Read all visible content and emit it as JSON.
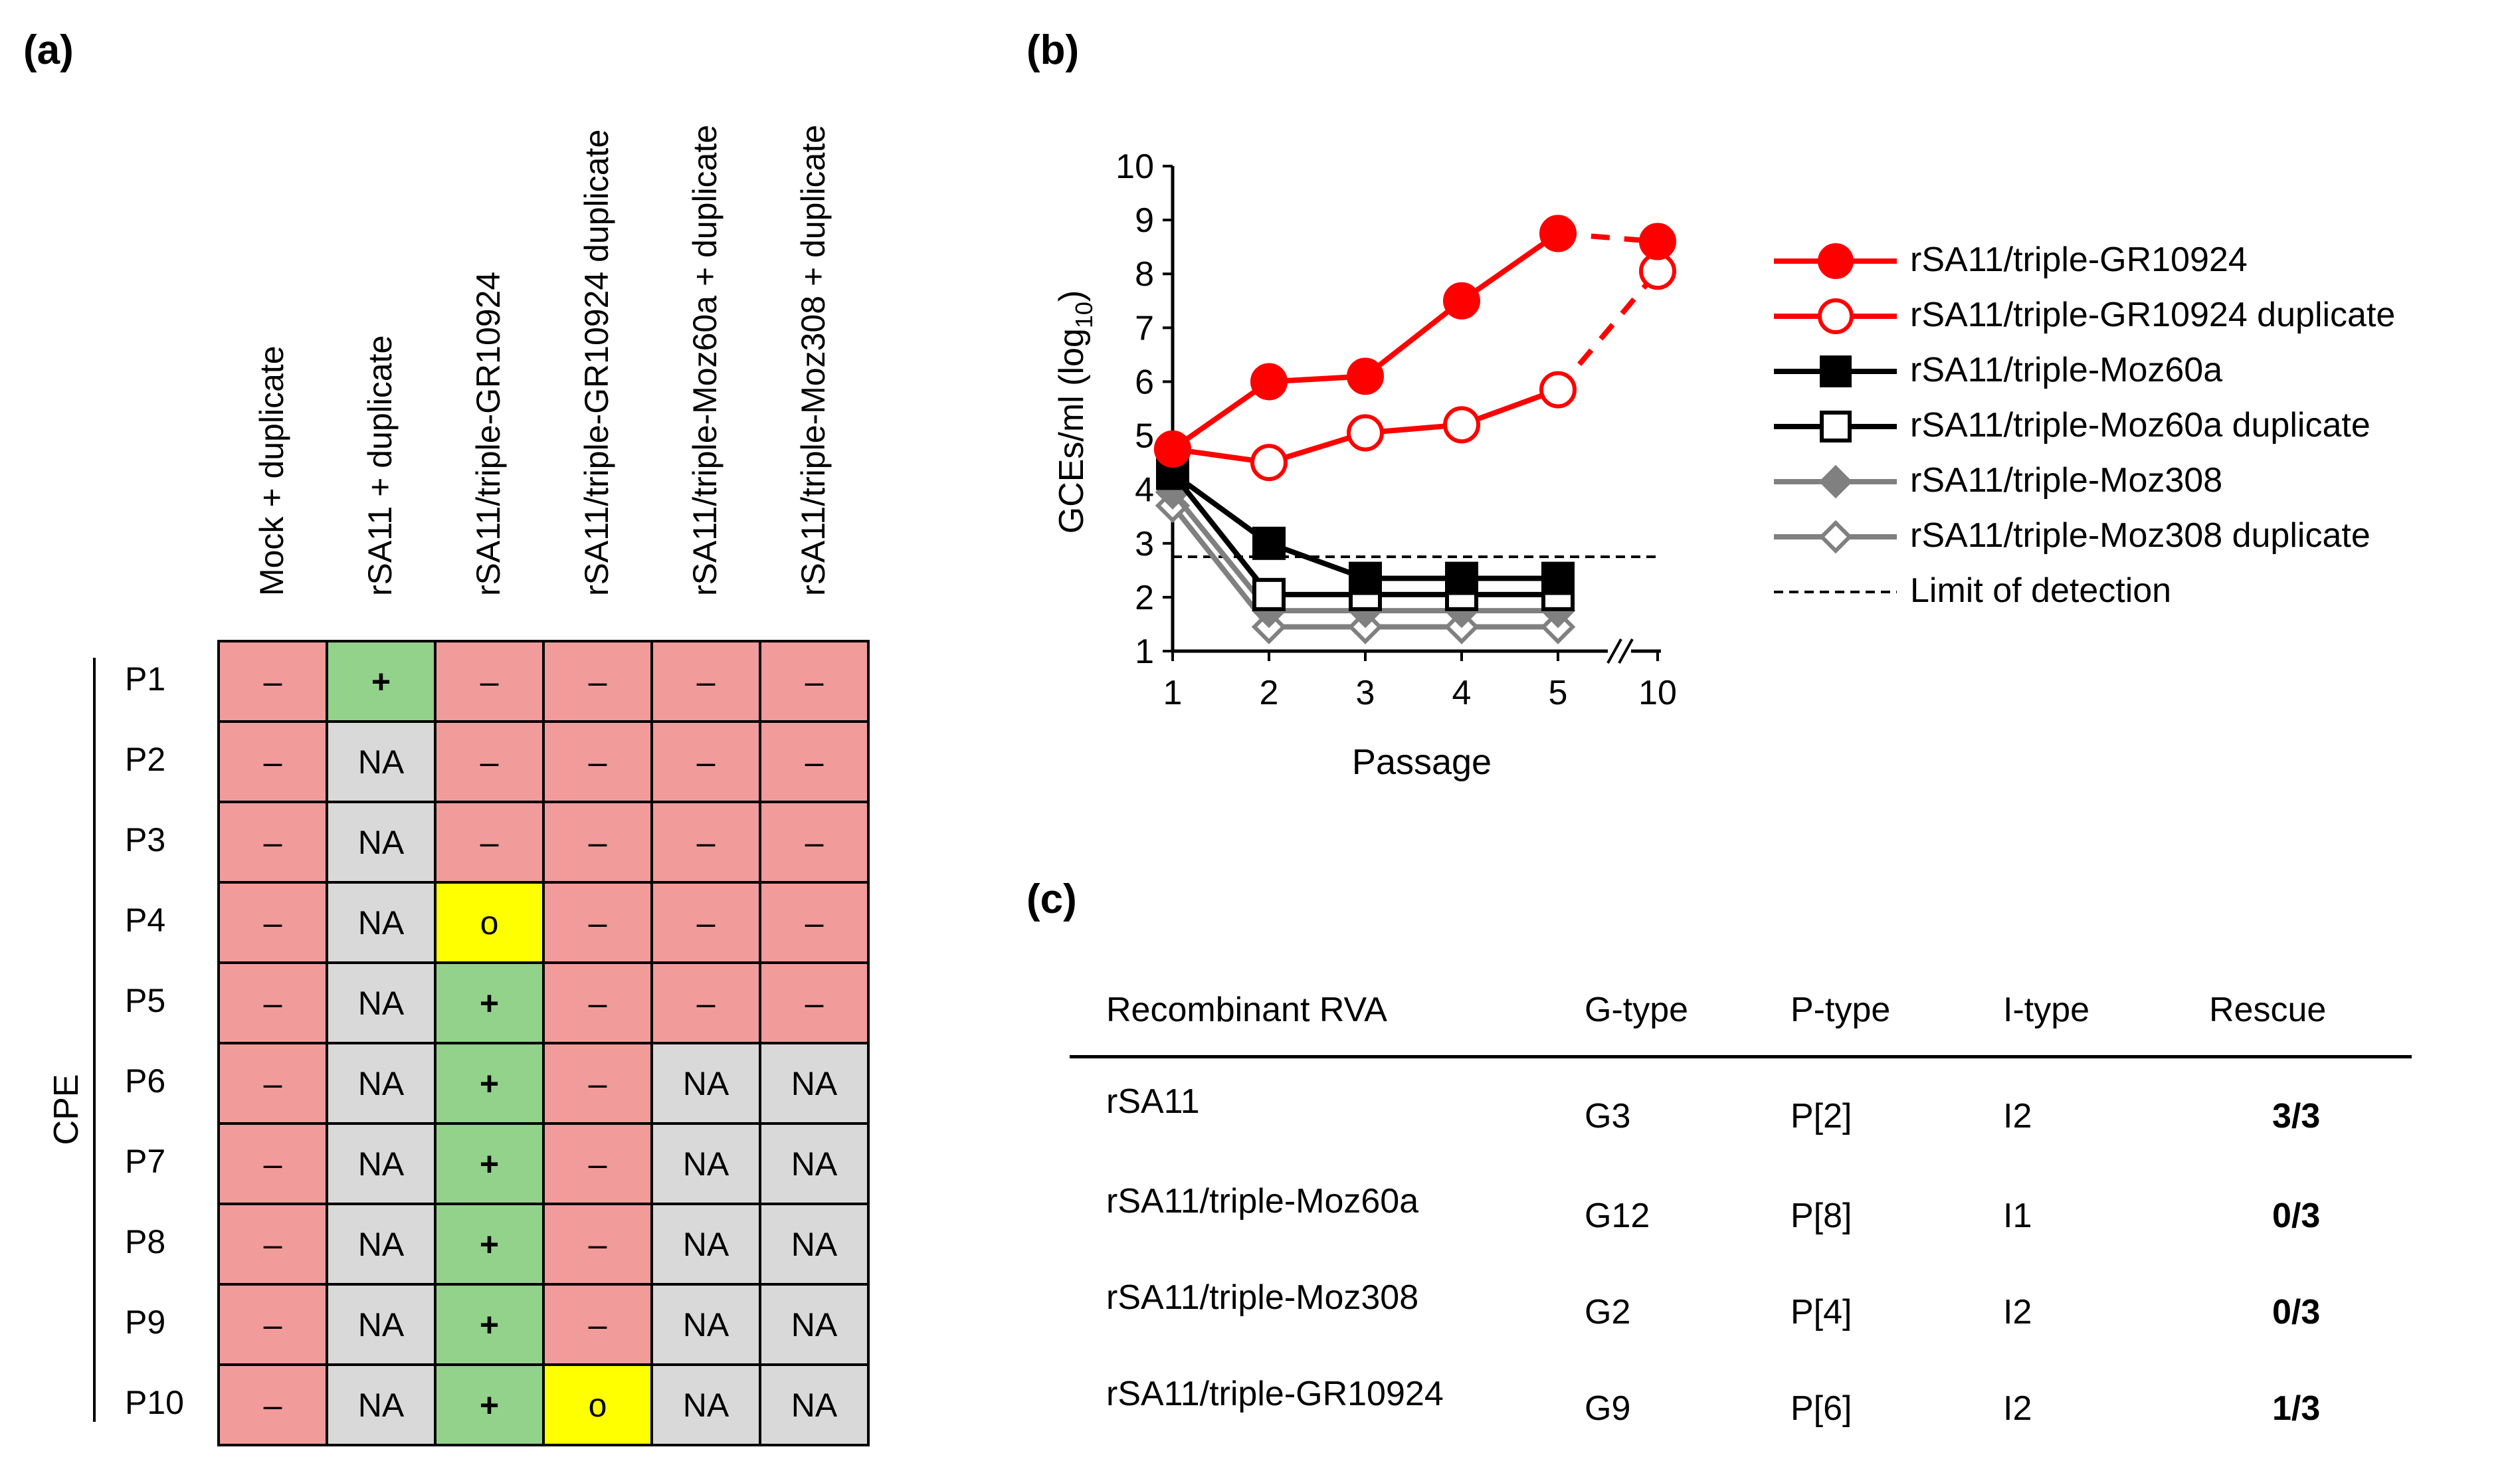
{
  "panels": {
    "a": {
      "label": "(a)"
    },
    "b": {
      "label": "(b)"
    },
    "c": {
      "label": "(c)"
    }
  },
  "grid": {
    "columns": [
      "Mock + duplicate",
      "rSA11 + duplicate",
      "rSA11/triple-GR10924",
      "rSA11/triple-GR10924 duplicate",
      "rSA11/triple-Moz60a + duplicate",
      "rSA11/triple-Moz308 + duplicate"
    ],
    "row_group": "CPE",
    "rows": [
      {
        "label": "P1",
        "cells": [
          "–",
          "+",
          "–",
          "–",
          "–",
          "–"
        ]
      },
      {
        "label": "P2",
        "cells": [
          "–",
          "NA",
          "–",
          "–",
          "–",
          "–"
        ]
      },
      {
        "label": "P3",
        "cells": [
          "–",
          "NA",
          "–",
          "–",
          "–",
          "–"
        ]
      },
      {
        "label": "P4",
        "cells": [
          "–",
          "NA",
          "o",
          "–",
          "–",
          "–"
        ]
      },
      {
        "label": "P5",
        "cells": [
          "–",
          "NA",
          "+",
          "–",
          "–",
          "–"
        ]
      },
      {
        "label": "P6",
        "cells": [
          "–",
          "NA",
          "+",
          "–",
          "NA",
          "NA"
        ]
      },
      {
        "label": "P7",
        "cells": [
          "–",
          "NA",
          "+",
          "–",
          "NA",
          "NA"
        ]
      },
      {
        "label": "P8",
        "cells": [
          "–",
          "NA",
          "+",
          "–",
          "NA",
          "NA"
        ]
      },
      {
        "label": "P9",
        "cells": [
          "–",
          "NA",
          "+",
          "–",
          "NA",
          "NA"
        ]
      },
      {
        "label": "P10",
        "cells": [
          "–",
          "NA",
          "+",
          "o",
          "NA",
          "NA"
        ]
      }
    ],
    "colors": {
      "negative": "#f29b9b",
      "positive": "#92d28a",
      "na": "#d9d9d9",
      "partial": "#ffff00"
    }
  },
  "chart_data": {
    "type": "line",
    "xlabel": "Passage",
    "ylabel_main": "GCEs/ml (log",
    "ylabel_sub": "10",
    "ylabel_end": ")",
    "ylim": [
      1,
      10
    ],
    "yticks": [
      1,
      2,
      3,
      4,
      5,
      6,
      7,
      8,
      9,
      10
    ],
    "xticks": [
      "1",
      "2",
      "3",
      "4",
      "5",
      "10"
    ],
    "axis_break": true,
    "limit_of_detection": 2.75,
    "series": [
      {
        "name": "rSA11/triple-GR10924",
        "color": "#ff0000",
        "marker": "circle",
        "filled": true,
        "values": [
          4.75,
          6.0,
          6.1,
          7.5,
          8.75,
          8.6
        ]
      },
      {
        "name": "rSA11/triple-GR10924 duplicate",
        "color": "#ff0000",
        "marker": "circle",
        "filled": false,
        "values": [
          4.75,
          4.5,
          5.05,
          5.2,
          5.85,
          8.05
        ]
      },
      {
        "name": "rSA11/triple-Moz60a",
        "color": "#000000",
        "marker": "square",
        "filled": true,
        "values": [
          4.3,
          3.0,
          2.35,
          2.35,
          2.35,
          null
        ]
      },
      {
        "name": "rSA11/triple-Moz60a duplicate",
        "color": "#000000",
        "marker": "square",
        "filled": false,
        "values": [
          4.3,
          2.05,
          2.05,
          2.05,
          2.05,
          null
        ]
      },
      {
        "name": "rSA11/triple-Moz308",
        "color": "#808080",
        "marker": "diamond",
        "filled": true,
        "values": [
          3.95,
          1.75,
          1.75,
          1.75,
          1.75,
          null
        ]
      },
      {
        "name": "rSA11/triple-Moz308 duplicate",
        "color": "#808080",
        "marker": "diamond",
        "filled": false,
        "values": [
          3.7,
          1.45,
          1.45,
          1.45,
          1.45,
          null
        ]
      }
    ],
    "lod_label": "Limit of detection"
  },
  "table_c": {
    "headers": [
      "Recombinant RVA",
      "G-type",
      "P-type",
      "I-type",
      "Rescue"
    ],
    "rows": [
      [
        "rSA11",
        "G3",
        "P[2]",
        "I2",
        "3/3"
      ],
      [
        "rSA11/triple-Moz60a",
        "G12",
        "P[8]",
        "I1",
        "0/3"
      ],
      [
        "rSA11/triple-Moz308",
        "G2",
        "P[4]",
        "I2",
        "0/3"
      ],
      [
        "rSA11/triple-GR10924",
        "G9",
        "P[6]",
        "I2",
        "1/3"
      ]
    ]
  }
}
